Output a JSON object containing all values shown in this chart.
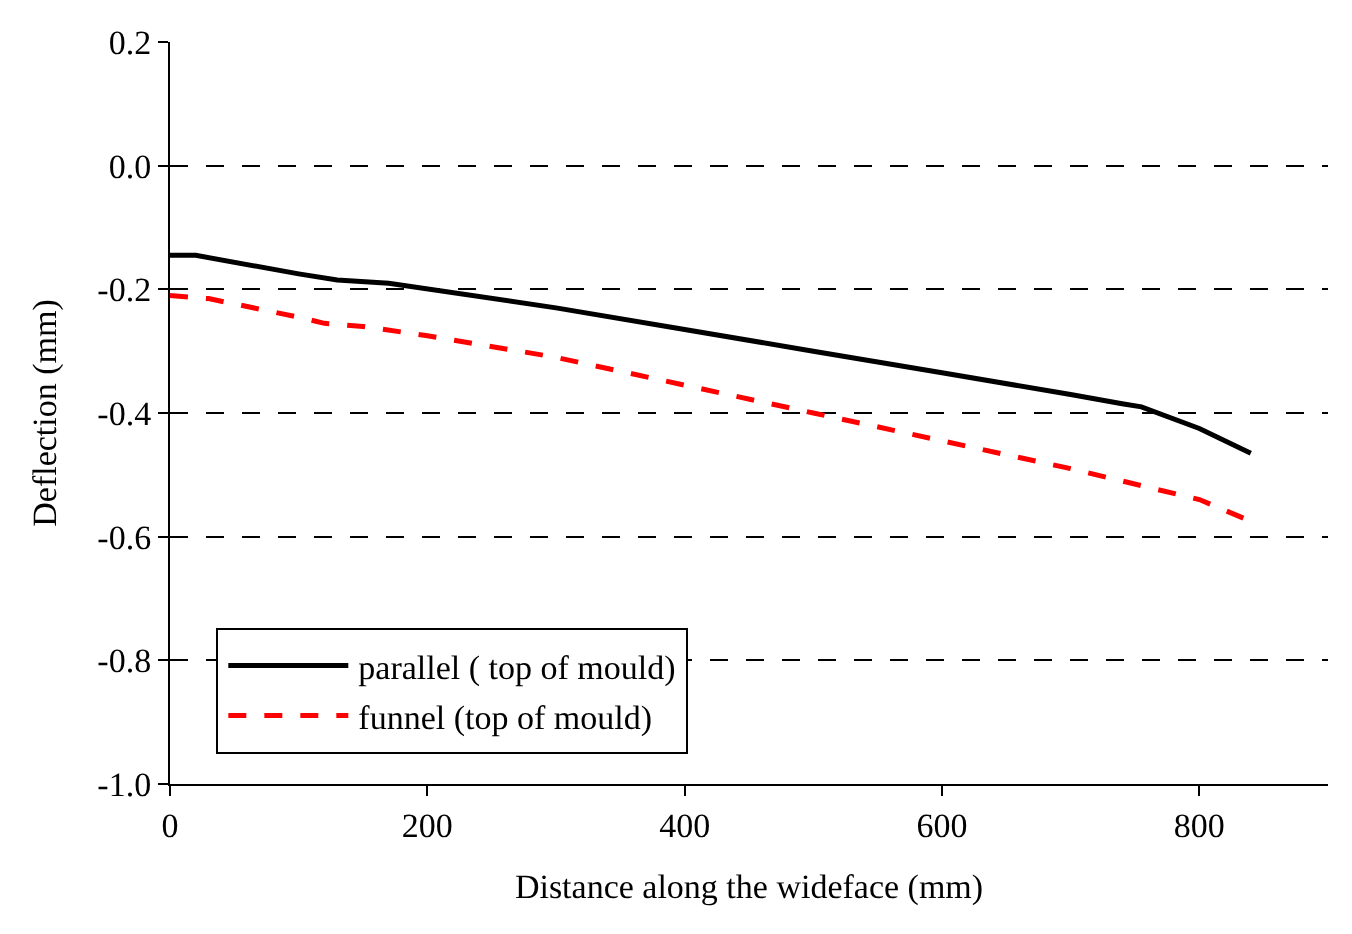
{
  "chart_data": {
    "type": "line",
    "xlabel": "Distance along the wideface (mm)",
    "ylabel": "Deflection (mm)",
    "xlim": [
      0,
      900
    ],
    "xticks": [
      0,
      200,
      400,
      600,
      800
    ],
    "ylim": [
      -1.0,
      0.2
    ],
    "yticks": [
      {
        "value": -1.0,
        "label": "-1.0"
      },
      {
        "value": -0.8,
        "label": "-0.8"
      },
      {
        "value": -0.6,
        "label": "-0.6"
      },
      {
        "value": -0.4,
        "label": "-0.4"
      },
      {
        "value": -0.2,
        "label": "-0.2"
      },
      {
        "value": 0.0,
        "label": "0.0"
      },
      {
        "value": 0.2,
        "label": "0.2"
      }
    ],
    "grid": "y",
    "legend": "bottom left",
    "marker": "none",
    "series": [
      {
        "name": "parallel ( top of mould)",
        "color": "#000000",
        "line_style": "solid",
        "x": [
          0,
          20,
          100,
          130,
          170,
          300,
          400,
          500,
          600,
          700,
          740,
          755,
          800,
          840
        ],
        "values": [
          -0.145,
          -0.145,
          -0.175,
          -0.185,
          -0.19,
          -0.23,
          -0.265,
          -0.3,
          -0.335,
          -0.37,
          -0.385,
          -0.39,
          -0.425,
          -0.465
        ]
      },
      {
        "name": "funnel (top of mould)",
        "color": "#ff0000",
        "line_style": "dashed",
        "x": [
          0,
          30,
          100,
          120,
          150,
          200,
          300,
          400,
          500,
          600,
          700,
          800,
          840
        ],
        "values": [
          -0.21,
          -0.215,
          -0.245,
          -0.255,
          -0.26,
          -0.275,
          -0.31,
          -0.355,
          -0.4,
          -0.445,
          -0.49,
          -0.54,
          -0.575
        ]
      }
    ]
  }
}
